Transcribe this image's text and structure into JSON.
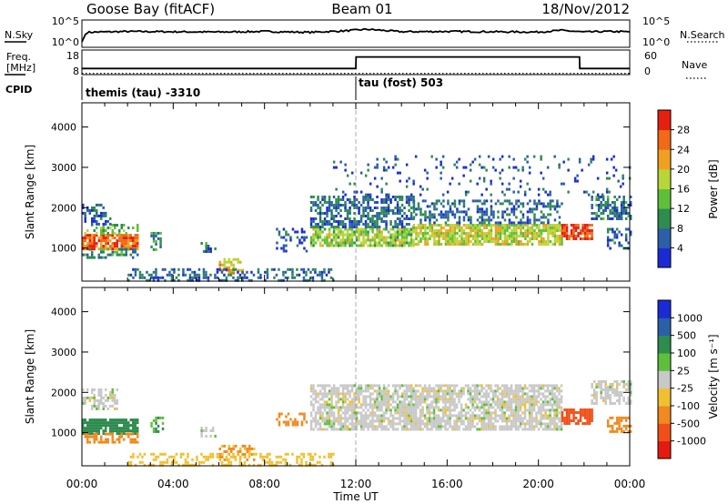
{
  "header": {
    "station": "Goose Bay (fitACF)",
    "beam": "Beam 01",
    "date": "18/Nov/2012"
  },
  "summary": {
    "nsky_label": "N.Sky",
    "nsky_ticks": [
      "10^5",
      "10^0"
    ],
    "nsearch_label": "N.Search",
    "nsearch_ticks": [
      "10^5",
      "10^0"
    ],
    "freq_label_1": "Freq.",
    "freq_label_2": "[MHz]",
    "freq_ticks": [
      "18",
      "8"
    ],
    "nave_label": "Nave",
    "nave_ticks": [
      "60",
      "0"
    ],
    "cpid_label": "CPID",
    "cpid_entries": [
      {
        "text": "themis (tau) -3310",
        "start_hour": 0
      },
      {
        "text": "tau (fost) 503",
        "start_hour": 12
      }
    ]
  },
  "axes": {
    "ylabel": "Slant Range [km]",
    "xlabel": "Time UT",
    "x_ticks": [
      "00:00",
      "04:00",
      "08:00",
      "12:00",
      "16:00",
      "20:00",
      "00:00"
    ],
    "y_ticks": [
      "1000",
      "2000",
      "3000",
      "4000"
    ]
  },
  "colorbars": {
    "power": {
      "label": "Power [dB]",
      "ticks": [
        "4",
        "8",
        "12",
        "16",
        "20",
        "24",
        "28"
      ],
      "colors": [
        "#1a2bd6",
        "#2b5fa8",
        "#2e8c4e",
        "#5fbf3a",
        "#b8d638",
        "#f0a020",
        "#f06a18",
        "#e42010"
      ]
    },
    "velocity": {
      "label": "Velocity [m s⁻¹]",
      "ticks": [
        "1000",
        "500",
        "100",
        "25",
        "-25",
        "-100",
        "-500",
        "-1000"
      ],
      "colors": [
        "#1a2bd6",
        "#2b5fa8",
        "#2e8c4e",
        "#5fbf3a",
        "#c8c8c8",
        "#f0c030",
        "#f08a20",
        "#f05018",
        "#e41a10"
      ]
    }
  },
  "chart_data": [
    {
      "type": "line",
      "title": "N.Sky / N.Search",
      "x_range_hours": [
        0,
        24
      ],
      "series": [
        {
          "name": "N.Sky",
          "x": [
            0,
            0.2,
            2,
            4,
            6,
            8,
            10,
            11.5,
            12.5,
            14,
            16,
            18,
            20,
            21,
            22,
            23,
            24
          ],
          "values": [
            0.2,
            0.55,
            0.58,
            0.57,
            0.56,
            0.58,
            0.55,
            0.6,
            0.66,
            0.57,
            0.58,
            0.57,
            0.56,
            0.62,
            0.56,
            0.58,
            0.57
          ]
        }
      ]
    },
    {
      "type": "line",
      "title": "Freq. / Nave",
      "x_range_hours": [
        0,
        24
      ],
      "series": [
        {
          "name": "Freq.",
          "x": [
            0,
            12,
            12.01,
            21.8,
            21.81,
            24
          ],
          "values": [
            10.5,
            10.5,
            15.2,
            15.2,
            10.5,
            10.5
          ]
        },
        {
          "name": "Nave",
          "x": [
            0,
            24
          ],
          "values": [
            3,
            3
          ]
        }
      ]
    },
    {
      "type": "heatmap",
      "title": "Power [dB]",
      "xlabel": "Time UT",
      "ylabel": "Slant Range [km]",
      "x_range_hours": [
        0,
        24
      ],
      "ylim": [
        180,
        4600
      ],
      "regions": [
        {
          "t": [
            0.0,
            2.4
          ],
          "r": [
            1000,
            1350
          ],
          "value": 26,
          "density": 0.85
        },
        {
          "t": [
            0.0,
            2.4
          ],
          "r": [
            780,
            1000
          ],
          "value": 10,
          "density": 0.45
        },
        {
          "t": [
            0.0,
            2.4
          ],
          "r": [
            1350,
            1600
          ],
          "value": 14,
          "density": 0.4
        },
        {
          "t": [
            0.0,
            1.2
          ],
          "r": [
            1600,
            2100
          ],
          "value": 6,
          "density": 0.5
        },
        {
          "t": [
            3.0,
            3.5
          ],
          "r": [
            950,
            1400
          ],
          "value": 9,
          "density": 0.5
        },
        {
          "t": [
            5.2,
            5.8
          ],
          "r": [
            900,
            1150
          ],
          "value": 8,
          "density": 0.5
        },
        {
          "t": [
            6.0,
            7.0
          ],
          "r": [
            350,
            750
          ],
          "value": 20,
          "density": 0.5
        },
        {
          "t": [
            2.0,
            11.0
          ],
          "r": [
            200,
            500
          ],
          "value": 7,
          "density": 0.45
        },
        {
          "t": [
            8.5,
            9.8
          ],
          "r": [
            900,
            1500
          ],
          "value": 5,
          "density": 0.3
        },
        {
          "t": [
            10.0,
            14.5
          ],
          "r": [
            1050,
            1500
          ],
          "value": 16,
          "density": 0.75
        },
        {
          "t": [
            10.0,
            14.5
          ],
          "r": [
            1500,
            2300
          ],
          "value": 7,
          "density": 0.55
        },
        {
          "t": [
            14.5,
            21.0
          ],
          "r": [
            1100,
            1600
          ],
          "value": 18,
          "density": 0.8
        },
        {
          "t": [
            14.5,
            21.0
          ],
          "r": [
            1600,
            2200
          ],
          "value": 7,
          "density": 0.45
        },
        {
          "t": [
            21.0,
            22.3
          ],
          "r": [
            1200,
            1600
          ],
          "value": 28,
          "density": 0.8
        },
        {
          "t": [
            22.3,
            24.0
          ],
          "r": [
            1700,
            2300
          ],
          "value": 8,
          "density": 0.6
        },
        {
          "t": [
            23.0,
            24.0
          ],
          "r": [
            1000,
            1500
          ],
          "value": 6,
          "density": 0.45
        },
        {
          "t": [
            11.0,
            24.0
          ],
          "r": [
            2300,
            3300
          ],
          "value": 5,
          "density": 0.1
        }
      ]
    },
    {
      "type": "heatmap",
      "title": "Velocity [m s⁻¹]",
      "xlabel": "Time UT",
      "ylabel": "Slant Range [km]",
      "x_range_hours": [
        0,
        24
      ],
      "ylim": [
        180,
        4600
      ],
      "regions": [
        {
          "t": [
            0.0,
            2.4
          ],
          "r": [
            1000,
            1350
          ],
          "value": 150,
          "density": 0.85
        },
        {
          "t": [
            0.0,
            2.4
          ],
          "r": [
            780,
            1000
          ],
          "value": -150,
          "density": 0.45
        },
        {
          "t": [
            0.0,
            1.5
          ],
          "r": [
            1600,
            2100
          ],
          "value": 0,
          "density": 0.55
        },
        {
          "t": [
            3.0,
            3.5
          ],
          "r": [
            1000,
            1400
          ],
          "value": 80,
          "density": 0.45
        },
        {
          "t": [
            5.2,
            5.8
          ],
          "r": [
            900,
            1150
          ],
          "value": 0,
          "density": 0.5
        },
        {
          "t": [
            6.0,
            7.5
          ],
          "r": [
            300,
            700
          ],
          "value": -120,
          "density": 0.45
        },
        {
          "t": [
            2.0,
            11.0
          ],
          "r": [
            200,
            500
          ],
          "value": -60,
          "density": 0.4
        },
        {
          "t": [
            8.5,
            9.8
          ],
          "r": [
            1200,
            1500
          ],
          "value": -200,
          "density": 0.45
        },
        {
          "t": [
            10.0,
            21.0
          ],
          "r": [
            1050,
            2200
          ],
          "value": 0,
          "density": 0.75
        },
        {
          "t": [
            21.0,
            22.3
          ],
          "r": [
            1200,
            1600
          ],
          "value": -600,
          "density": 0.8
        },
        {
          "t": [
            22.3,
            24.0
          ],
          "r": [
            1700,
            2300
          ],
          "value": 0,
          "density": 0.6
        },
        {
          "t": [
            23.0,
            24.0
          ],
          "r": [
            1000,
            1400
          ],
          "value": -300,
          "density": 0.45
        }
      ]
    }
  ]
}
